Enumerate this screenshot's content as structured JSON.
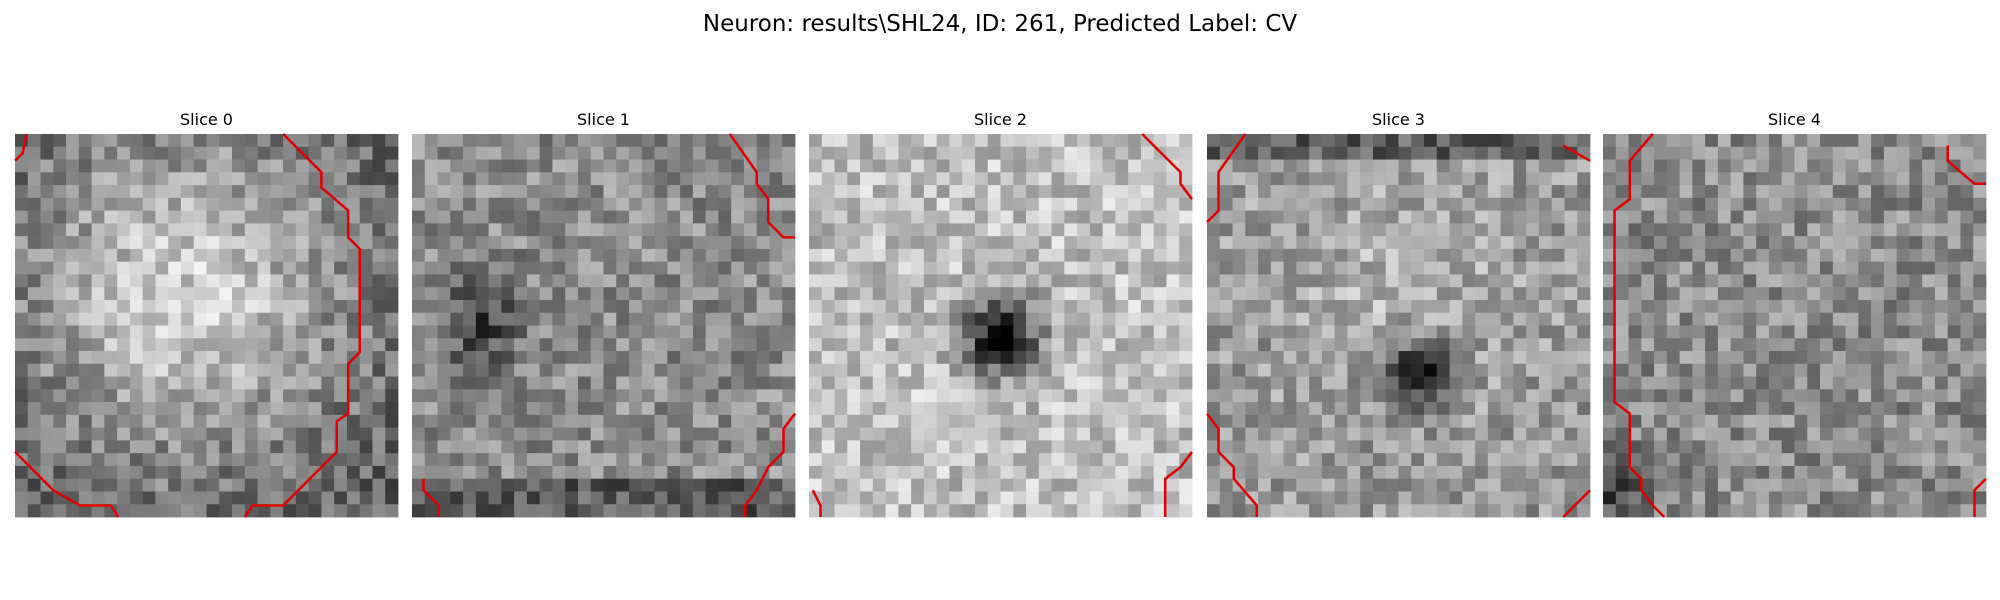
{
  "title": "Neuron: results\\SHL24, ID: 261, Predicted Label: CV",
  "panels": [
    {
      "title": "Slice 0"
    },
    {
      "title": "Slice 1"
    },
    {
      "title": "Slice 2"
    },
    {
      "title": "Slice 3"
    },
    {
      "title": "Slice 4"
    }
  ]
}
